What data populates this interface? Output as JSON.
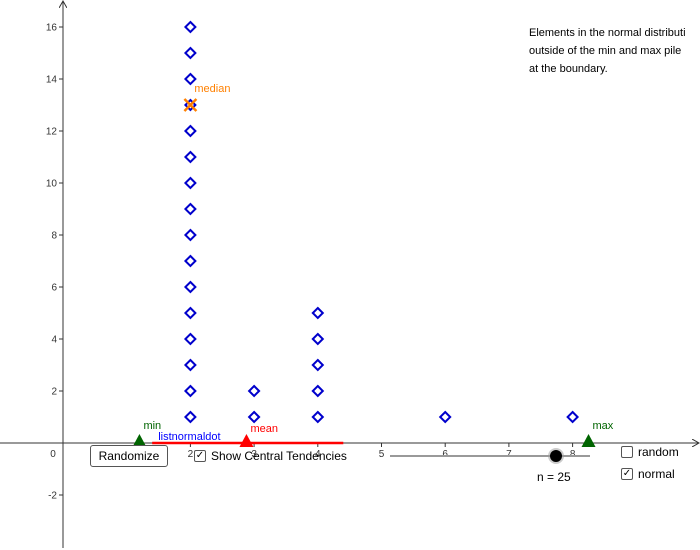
{
  "note": {
    "line1": "Elements in the normal distributi",
    "line2": "outside of the min and max pile",
    "line3": "at the boundary."
  },
  "labels": {
    "median": "median",
    "mean": "mean",
    "min": "min",
    "max": "max",
    "list": "listnormaldot"
  },
  "controls": {
    "randomize": "Randomize",
    "show_central": "Show Central Tendencies",
    "show_central_checked": true,
    "random": "random",
    "random_checked": false,
    "normal": "normal",
    "normal_checked": true,
    "n_label": "n = 25",
    "n": 25
  },
  "colors": {
    "points": "#0000cc",
    "median": "#ff8000",
    "mean": "#ff0000",
    "minmax": "#006400",
    "list": "#0000ff"
  },
  "chart_data": {
    "type": "scatter",
    "x_ticks": [
      "0",
      "2",
      "3",
      "4",
      "5",
      "6",
      "7",
      "8"
    ],
    "y_ticks": [
      "-2",
      "2",
      "4",
      "6",
      "8",
      "10",
      "12",
      "14",
      "16"
    ],
    "points": [
      {
        "x": 2,
        "y": 1
      },
      {
        "x": 2,
        "y": 2
      },
      {
        "x": 2,
        "y": 3
      },
      {
        "x": 2,
        "y": 4
      },
      {
        "x": 2,
        "y": 5
      },
      {
        "x": 2,
        "y": 6
      },
      {
        "x": 2,
        "y": 7
      },
      {
        "x": 2,
        "y": 8
      },
      {
        "x": 2,
        "y": 9
      },
      {
        "x": 2,
        "y": 10
      },
      {
        "x": 2,
        "y": 11
      },
      {
        "x": 2,
        "y": 12
      },
      {
        "x": 2,
        "y": 13
      },
      {
        "x": 2,
        "y": 14
      },
      {
        "x": 2,
        "y": 15
      },
      {
        "x": 2,
        "y": 16
      },
      {
        "x": 3,
        "y": 1
      },
      {
        "x": 3,
        "y": 2
      },
      {
        "x": 4,
        "y": 1
      },
      {
        "x": 4,
        "y": 2
      },
      {
        "x": 4,
        "y": 3
      },
      {
        "x": 4,
        "y": 4
      },
      {
        "x": 4,
        "y": 5
      },
      {
        "x": 6,
        "y": 1
      },
      {
        "x": 8,
        "y": 1
      }
    ],
    "median": {
      "x": 2,
      "y": 13
    },
    "mean_x": 2.88,
    "min_x": 1.2,
    "max_x": 8.25,
    "mean_segment": [
      1.4,
      4.4
    ]
  }
}
